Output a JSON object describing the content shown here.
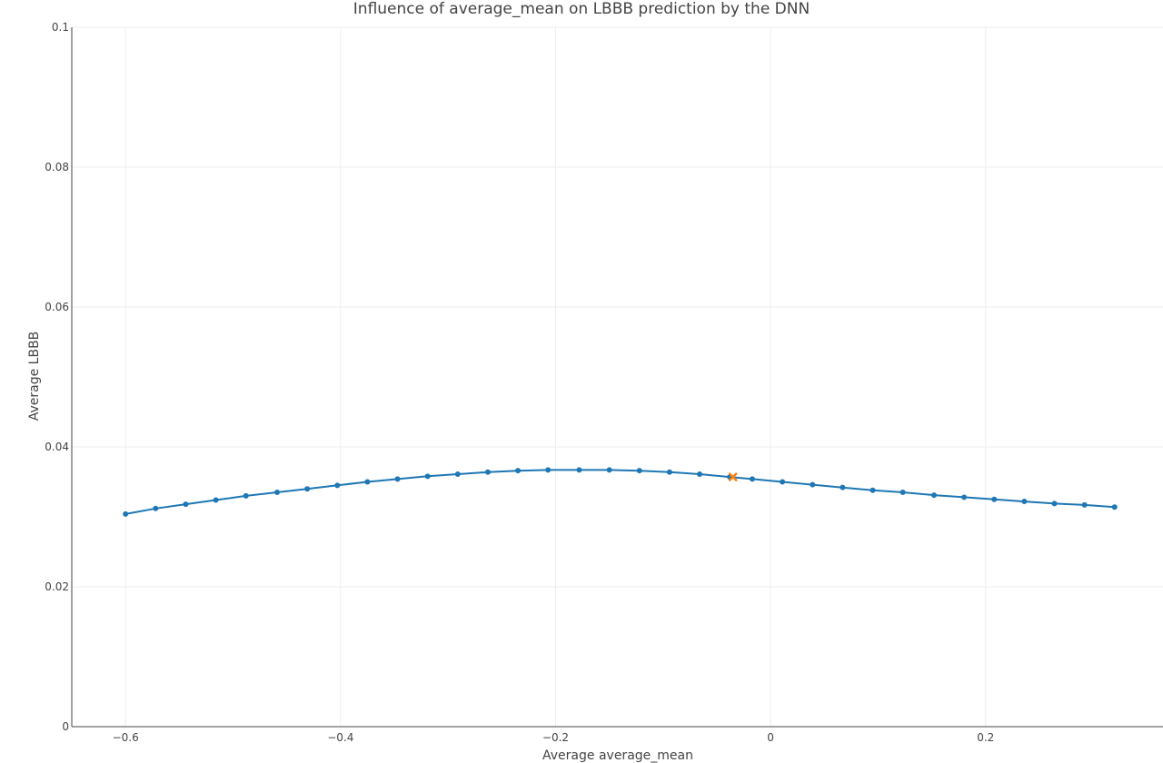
{
  "chart_data": {
    "type": "line",
    "title": "Influence of average_mean on LBBB prediction by the DNN",
    "xlabel": "Average average_mean",
    "ylabel": "Average LBBB",
    "xlim": [
      -0.65,
      0.365
    ],
    "ylim": [
      0,
      0.1
    ],
    "x_ticks": [
      -0.6,
      -0.4,
      -0.2,
      0,
      0.2
    ],
    "x_tick_labels": [
      "−0.6",
      "−0.4",
      "−0.2",
      "0",
      "0.2"
    ],
    "y_ticks": [
      0,
      0.02,
      0.04,
      0.06,
      0.08,
      0.1
    ],
    "y_tick_labels": [
      "0",
      "0.02",
      "0.04",
      "0.06",
      "0.08",
      "0.1"
    ],
    "grid": true,
    "colors": {
      "line": "#1f77b4",
      "highlight": "#ff7f0e"
    },
    "series": [
      {
        "x": [
          -0.6,
          -0.572,
          -0.544,
          -0.516,
          -0.488,
          -0.459,
          -0.431,
          -0.403,
          -0.375,
          -0.347,
          -0.319,
          -0.291,
          -0.263,
          -0.235,
          -0.207,
          -0.178,
          -0.15,
          -0.122,
          -0.094,
          -0.066,
          -0.038,
          -0.017,
          0.011,
          0.039,
          0.067,
          0.095,
          0.123,
          0.152,
          0.18,
          0.208,
          0.236,
          0.264,
          0.292,
          0.32
        ],
        "y": [
          0.0304,
          0.0312,
          0.0318,
          0.0324,
          0.033,
          0.0335,
          0.034,
          0.0345,
          0.035,
          0.0354,
          0.0358,
          0.0361,
          0.0364,
          0.0366,
          0.0367,
          0.0367,
          0.0367,
          0.0366,
          0.0364,
          0.0361,
          0.0357,
          0.0354,
          0.035,
          0.0346,
          0.0342,
          0.0338,
          0.0335,
          0.0331,
          0.0328,
          0.0325,
          0.0322,
          0.0319,
          0.0317,
          0.0314
        ]
      }
    ],
    "highlight_point": {
      "x": -0.035,
      "y": 0.0357,
      "marker": "x"
    }
  }
}
